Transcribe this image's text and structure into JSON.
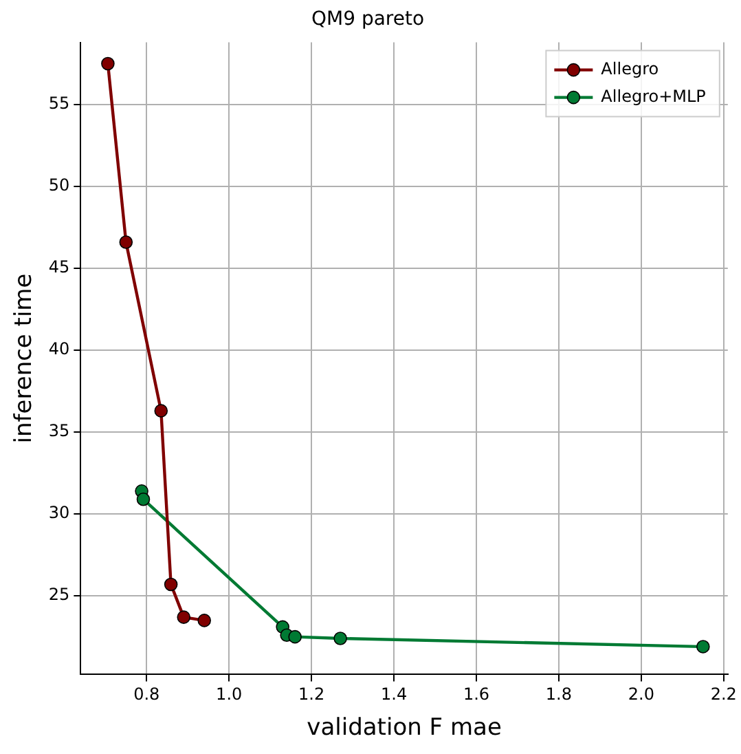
{
  "chart_data": {
    "type": "line",
    "title": "QM9 pareto",
    "xlabel": "validation F mae",
    "ylabel": "inference time",
    "xlim": [
      0.64,
      2.21
    ],
    "ylim": [
      20.2,
      58.8
    ],
    "xticks": [
      0.8,
      {
        "value": 1,
        "label": "1.0"
      },
      1.2,
      1.4,
      1.6,
      1.8,
      {
        "value": 2,
        "label": "2.0"
      },
      2.2
    ],
    "yticks": [
      25,
      30,
      35,
      40,
      45,
      50,
      55
    ],
    "grid": true,
    "legend": "top right",
    "marker": "circle",
    "series": [
      {
        "name": "Allegro",
        "color": "#800000",
        "x": [
          0.706,
          0.75,
          0.835,
          0.859,
          0.89,
          0.94
        ],
        "values": [
          57.5,
          46.6,
          36.3,
          25.7,
          23.7,
          23.5
        ]
      },
      {
        "name": "Allegro+MLP",
        "color": "#007a33",
        "x": [
          0.788,
          0.792,
          1.13,
          1.14,
          1.16,
          1.27,
          2.15
        ],
        "values": [
          31.4,
          30.9,
          23.1,
          22.6,
          22.5,
          22.4,
          21.9
        ]
      }
    ]
  }
}
